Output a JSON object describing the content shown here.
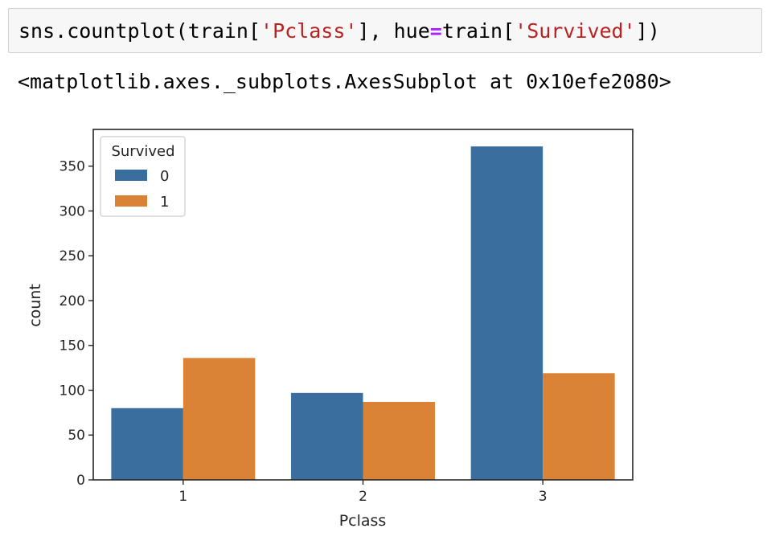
{
  "cell": {
    "code": {
      "prefix": "sns.countplot(train[",
      "arg1": "'Pclass'",
      "middle": "], hue",
      "op": "=",
      "middle2": "train[",
      "arg2": "'Survived'",
      "suffix": "])"
    },
    "output": "<matplotlib.axes._subplots.AxesSubplot at 0x10efe2080>"
  },
  "chart_data": {
    "type": "bar",
    "xlabel": "Pclass",
    "ylabel": "count",
    "categories": [
      "1",
      "2",
      "3"
    ],
    "series": [
      {
        "name": "0",
        "values": [
          80,
          97,
          372
        ],
        "color": "#3a6e9f"
      },
      {
        "name": "1",
        "values": [
          136,
          87,
          119
        ],
        "color": "#da8236"
      }
    ],
    "legend": {
      "title": "Survived",
      "position": "upper left"
    },
    "ylim": [
      0,
      391
    ],
    "yticks": [
      0,
      50,
      100,
      150,
      200,
      250,
      300,
      350
    ],
    "grid": false
  }
}
